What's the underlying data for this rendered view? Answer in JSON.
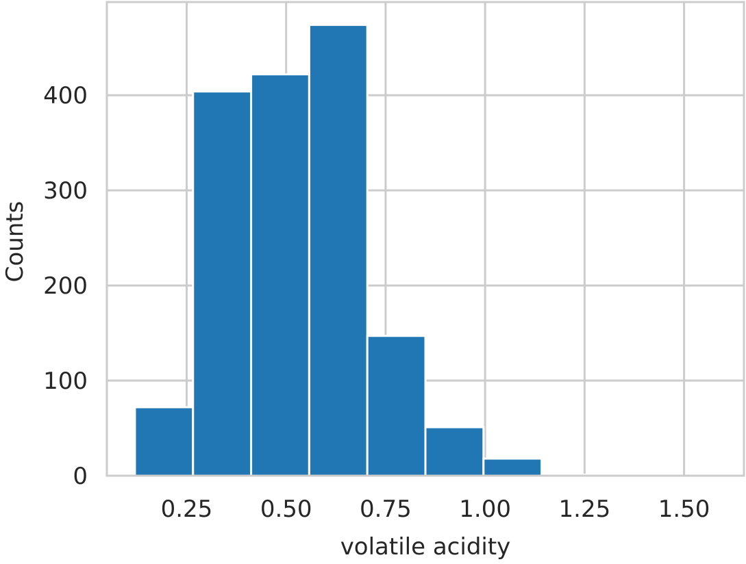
{
  "chart_data": {
    "type": "bar",
    "title": "",
    "xlabel": "volatile acidity",
    "ylabel": "Counts",
    "bin_edges": [
      0.12,
      0.266,
      0.412,
      0.558,
      0.704,
      0.85,
      0.996,
      1.142,
      1.288,
      1.434,
      1.58
    ],
    "values": [
      72,
      404,
      422,
      474,
      147,
      51,
      18,
      1,
      1,
      0
    ],
    "xlim": [
      0.0495,
      1.6505
    ],
    "ylim": [
      0,
      498
    ],
    "xticks": [
      0.25,
      0.5,
      0.75,
      1.0,
      1.25,
      1.5
    ],
    "xtick_labels": [
      "0.25",
      "0.50",
      "0.75",
      "1.00",
      "1.25",
      "1.50"
    ],
    "yticks": [
      0,
      100,
      200,
      300,
      400
    ],
    "ytick_labels": [
      "0",
      "100",
      "200",
      "300",
      "400"
    ],
    "grid": true,
    "colors": {
      "bar": "#2077b4",
      "grid": "#cccccc",
      "spine": "#cccccc",
      "text": "#262626"
    }
  }
}
